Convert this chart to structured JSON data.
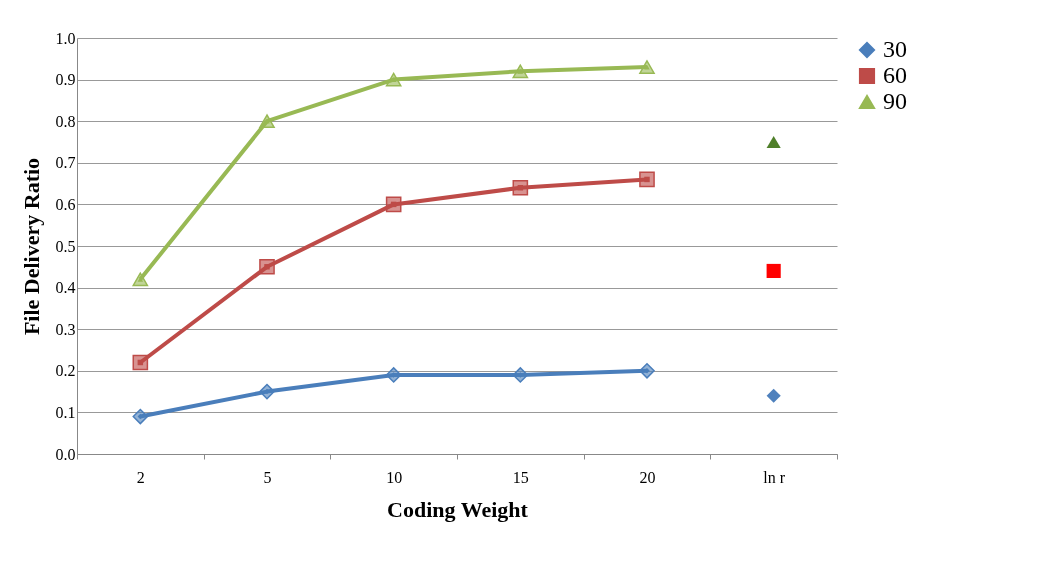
{
  "chart_data": {
    "type": "line",
    "xlabel": "Coding Weight",
    "ylabel": "File Delivery Ratio",
    "categories": [
      "2",
      "5",
      "10",
      "15",
      "20",
      "ln r"
    ],
    "series": [
      {
        "name": "30",
        "color": "#4a7ebb",
        "marker": "diamond",
        "values": [
          0.09,
          0.15,
          0.19,
          0.19,
          0.2,
          null
        ]
      },
      {
        "name": "60",
        "color": "#be4b48",
        "marker": "square",
        "values": [
          0.22,
          0.45,
          0.6,
          0.64,
          0.66,
          null
        ]
      },
      {
        "name": "90",
        "color": "#98b954",
        "marker": "triangle",
        "values": [
          0.42,
          0.8,
          0.9,
          0.92,
          0.93,
          null
        ]
      },
      {
        "type": "scatter",
        "color": "#4f81bd",
        "marker": "diamond",
        "x": [
          "ln r"
        ],
        "values": [
          0.14
        ]
      },
      {
        "type": "scatter",
        "color": "#ff0000",
        "marker": "square",
        "x": [
          "ln r"
        ],
        "values": [
          0.44
        ]
      },
      {
        "type": "scatter",
        "color": "#4f7f2a",
        "marker": "triangle",
        "x": [
          "ln r"
        ],
        "values": [
          0.75
        ]
      }
    ],
    "ylim": [
      0,
      1
    ],
    "yticks": [
      {
        "value": 0,
        "label": "0.0"
      },
      {
        "value": 0.1,
        "label": "0.1"
      },
      {
        "value": 0.2,
        "label": "0.2"
      },
      {
        "value": 0.3,
        "label": "0.3"
      },
      {
        "value": 0.4,
        "label": "0.4"
      },
      {
        "value": 0.5,
        "label": "0.5"
      },
      {
        "value": 0.6,
        "label": "0.6"
      },
      {
        "value": 0.7,
        "label": "0.7"
      },
      {
        "value": 0.8,
        "label": "0.8"
      },
      {
        "value": 0.9,
        "label": "0.9"
      },
      {
        "value": 1,
        "label": "1.0"
      }
    ],
    "grid": "y",
    "legend": "right"
  }
}
